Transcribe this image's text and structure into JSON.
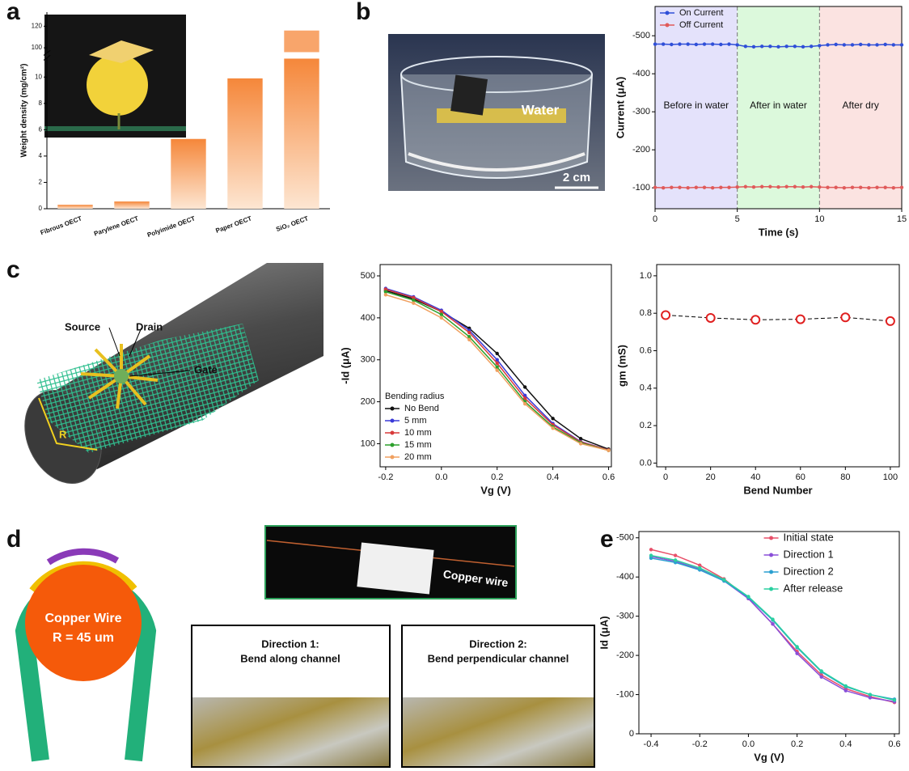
{
  "panel_labels": [
    "a",
    "b",
    "c",
    "d",
    "e"
  ],
  "panel_b_photo": {
    "label": "Water",
    "scale_bar": "2 cm"
  },
  "panel_c_diagram": {
    "source": "Source",
    "drain": "Drain",
    "gate": "Gate",
    "radius": "R"
  },
  "panel_d_diagram": {
    "wire": "Copper Wire",
    "radius": "R = 45 um"
  },
  "panel_d_photo": {
    "label": "Copper wire"
  },
  "panel_d_insets": [
    {
      "title": "Direction 1:",
      "subtitle": "Bend along channel"
    },
    {
      "title": "Direction 2:",
      "subtitle": "Bend perpendicular channel"
    }
  ],
  "chart_data": [
    {
      "type": "bar",
      "ylabel": "Weight density (mg/cm²)",
      "categories": [
        "Fibrous OECT",
        "Parylene OECT",
        "Polyimide OECT",
        "Paper OECT",
        "SiO₂ OECT"
      ],
      "values": [
        0.3,
        0.55,
        5.3,
        9.9,
        116
      ],
      "color": "#f5873a",
      "ylim": [
        0,
        133
      ],
      "axis_break": [
        11.4,
        96
      ],
      "yticks": [
        0,
        2,
        4,
        6,
        8,
        10,
        100,
        120
      ]
    },
    {
      "type": "line",
      "xlabel": "Time (s)",
      "ylabel": "Current (μA)",
      "x": [
        0,
        0.5,
        1,
        1.5,
        2,
        2.5,
        3,
        3.5,
        4,
        4.5,
        5,
        5.5,
        6,
        6.5,
        7,
        7.5,
        8,
        8.5,
        9,
        9.5,
        10,
        10.5,
        11,
        11.5,
        12,
        12.5,
        13,
        13.5,
        14,
        14.5,
        15
      ],
      "series": [
        {
          "name": "On Current",
          "color": "#2f4fd8",
          "values": [
            -478,
            -478,
            -477,
            -478,
            -478,
            -477,
            -478,
            -478,
            -477,
            -478,
            -476,
            -472,
            -471,
            -472,
            -472,
            -471,
            -472,
            -472,
            -471,
            -472,
            -474,
            -476,
            -477,
            -476,
            -476,
            -477,
            -476,
            -476,
            -477,
            -476,
            -476
          ]
        },
        {
          "name": "Off Current",
          "color": "#e05a5a",
          "values": [
            -101,
            -100,
            -101,
            -101,
            -100,
            -101,
            -101,
            -100,
            -101,
            -101,
            -102,
            -103,
            -102,
            -103,
            -103,
            -102,
            -103,
            -103,
            -102,
            -103,
            -102,
            -101,
            -101,
            -100,
            -101,
            -101,
            -100,
            -101,
            -101,
            -100,
            -101
          ]
        }
      ],
      "regions": [
        {
          "label": "Before in water",
          "xlim": [
            0,
            5
          ],
          "color": "#e4e2fb"
        },
        {
          "label": "After in water",
          "xlim": [
            5,
            10
          ],
          "color": "#dcf9dc"
        },
        {
          "label": "After dry",
          "xlim": [
            10,
            15
          ],
          "color": "#fbe3e1"
        }
      ],
      "xlim": [
        0,
        15
      ],
      "xticks": [
        0,
        5,
        10,
        15
      ],
      "ylim": [
        -45,
        -577
      ],
      "yticks": [
        -500,
        -400,
        -300,
        -200,
        -100
      ],
      "legend": "upper left"
    },
    {
      "type": "line",
      "xlabel": "Vg (V)",
      "ylabel": "-Id (μA)",
      "legend_title": "Bending radius",
      "x": [
        -0.2,
        -0.1,
        0,
        0.1,
        0.2,
        0.3,
        0.4,
        0.5,
        0.6
      ],
      "series": [
        {
          "name": "No Bend",
          "color": "#111111",
          "values": [
            465,
            445,
            415,
            375,
            315,
            235,
            160,
            112,
            87
          ]
        },
        {
          "name": "5 mm",
          "color": "#3a3ad8",
          "values": [
            470,
            450,
            418,
            370,
            300,
            215,
            148,
            105,
            85
          ]
        },
        {
          "name": "10 mm",
          "color": "#d83a3a",
          "values": [
            468,
            448,
            415,
            365,
            292,
            208,
            145,
            104,
            85
          ]
        },
        {
          "name": "15 mm",
          "color": "#2ca02c",
          "values": [
            462,
            442,
            408,
            355,
            283,
            200,
            140,
            102,
            84
          ]
        },
        {
          "name": "20 mm",
          "color": "#f0a060",
          "values": [
            455,
            435,
            400,
            348,
            275,
            195,
            137,
            100,
            84
          ]
        }
      ],
      "xlim": [
        -0.22,
        0.61
      ],
      "xticks": [
        -0.2,
        {
          "value": 0,
          "label": "0.0"
        },
        0.2,
        0.4,
        0.6
      ],
      "ylim": [
        45,
        527
      ],
      "yticks": [
        100,
        200,
        300,
        400,
        500
      ],
      "legend": "lower left"
    },
    {
      "type": "scatter",
      "xlabel": "Bend Number",
      "ylabel": "gm (mS)",
      "x": [
        0,
        20,
        40,
        60,
        80,
        100
      ],
      "values": [
        0.79,
        0.775,
        0.765,
        0.768,
        0.778,
        0.758
      ],
      "color": "#e02020",
      "xlim": [
        -4,
        104
      ],
      "xticks": [
        0,
        20,
        40,
        60,
        80,
        100
      ],
      "ylim": [
        -0.02,
        1.06
      ],
      "yticks": [
        {
          "value": 0,
          "label": "0.0"
        },
        0.2,
        0.4,
        0.6,
        0.8,
        {
          "value": 1,
          "label": "1.0"
        }
      ]
    },
    {
      "type": "line",
      "xlabel": "Vg (V)",
      "ylabel": "Id (μA)",
      "x": [
        -0.4,
        -0.3,
        -0.2,
        -0.1,
        0,
        0.1,
        0.2,
        0.3,
        0.4,
        0.5,
        0.6
      ],
      "series": [
        {
          "name": "Initial state",
          "color": "#e8506a",
          "values": [
            -470,
            -455,
            -430,
            -395,
            -345,
            -280,
            -210,
            -150,
            -115,
            -95,
            -80
          ]
        },
        {
          "name": "Direction 1",
          "color": "#8a4fd8",
          "values": [
            -452,
            -440,
            -420,
            -390,
            -345,
            -280,
            -205,
            -145,
            -110,
            -92,
            -82
          ]
        },
        {
          "name": "Direction 2",
          "color": "#2a9fd0",
          "values": [
            -448,
            -437,
            -418,
            -390,
            -348,
            -290,
            -220,
            -158,
            -120,
            -100,
            -88
          ]
        },
        {
          "name": "After release",
          "color": "#2ad0a0",
          "values": [
            -455,
            -443,
            -423,
            -393,
            -350,
            -292,
            -222,
            -160,
            -122,
            -100,
            -86
          ]
        }
      ],
      "xlim": [
        -0.45,
        0.62
      ],
      "xticks": [
        -0.4,
        -0.2,
        {
          "value": 0,
          "label": "0.0"
        },
        0.2,
        0.4,
        0.6
      ],
      "ylim": [
        0,
        -516
      ],
      "yticks": [
        -500,
        -400,
        -300,
        -200,
        -100,
        0
      ],
      "legend": "upper right"
    }
  ]
}
